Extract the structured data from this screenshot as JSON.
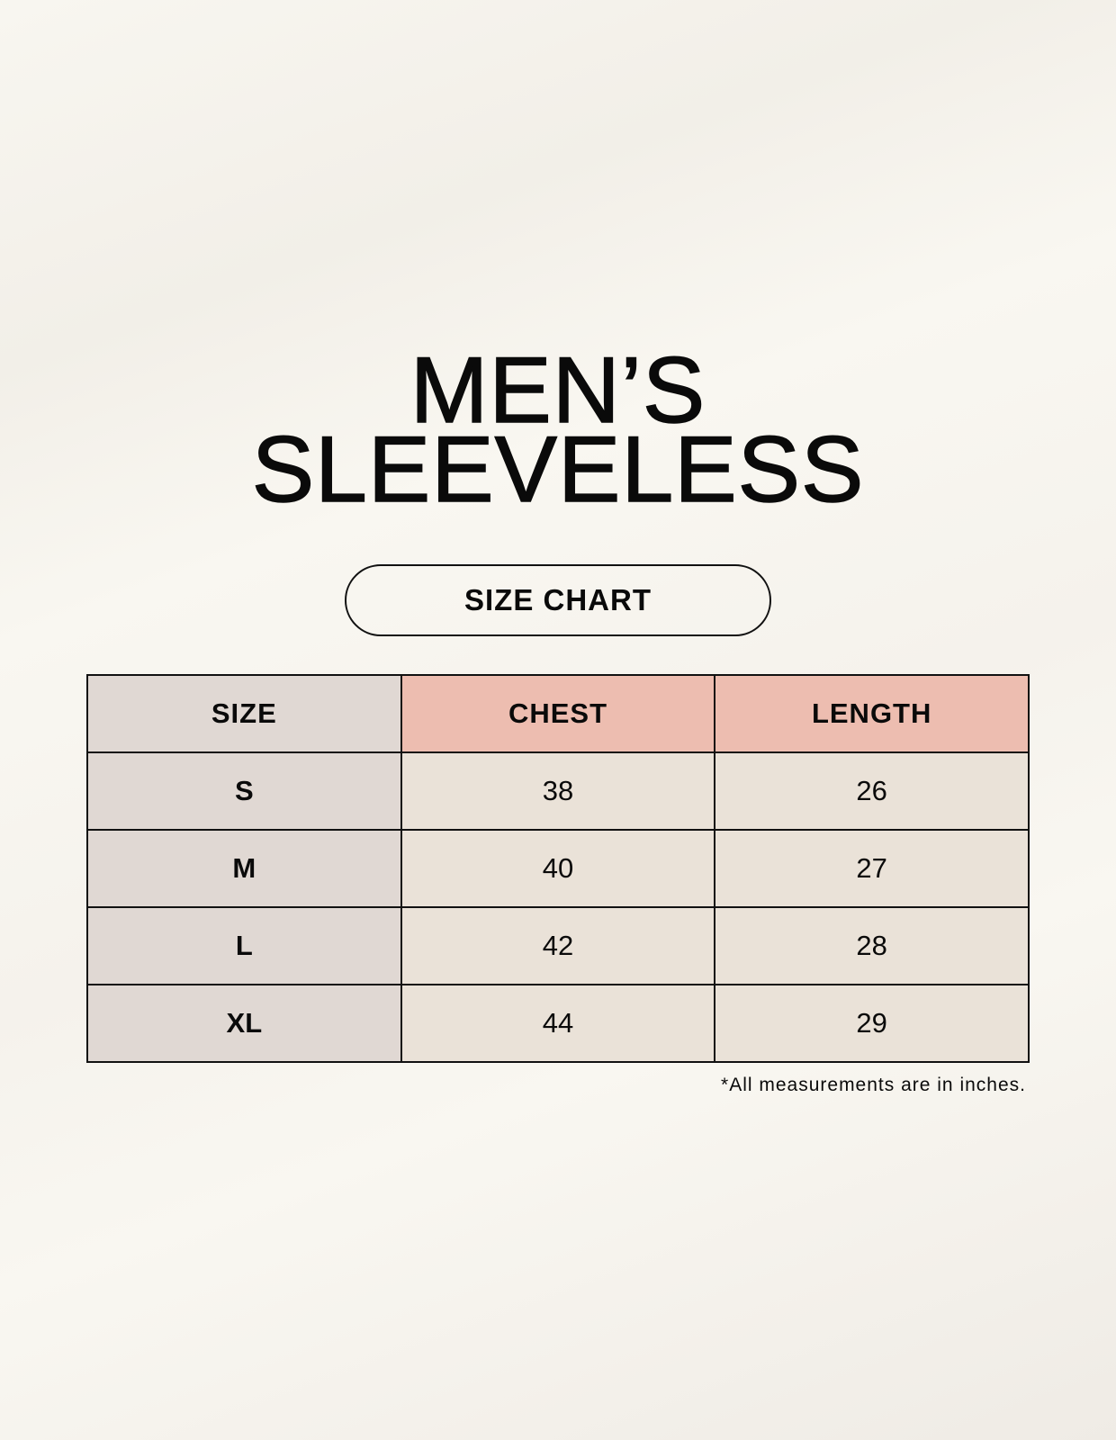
{
  "title": {
    "line1": "MEN’S",
    "line2": "SLEEVELESS"
  },
  "subtitle": "SIZE CHART",
  "table": {
    "headers": [
      "SIZE",
      "CHEST",
      "LENGTH"
    ],
    "rows": [
      [
        "S",
        "38",
        "26"
      ],
      [
        "M",
        "40",
        "27"
      ],
      [
        "L",
        "42",
        "28"
      ],
      [
        "XL",
        "44",
        "29"
      ]
    ]
  },
  "note": "*All measurements are in inches.",
  "colors": {
    "size_column": "#e0d8d3",
    "header_highlight": "#edbdb0",
    "cell": "#eae2d8"
  }
}
